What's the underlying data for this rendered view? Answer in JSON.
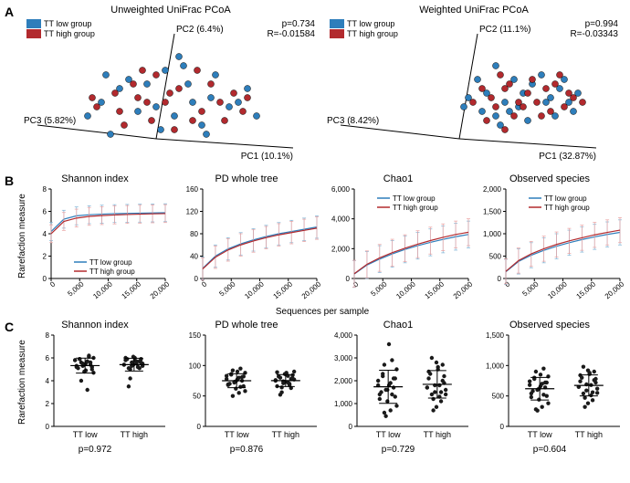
{
  "colors": {
    "blue": "#2e7ebb",
    "red": "#b22a2e",
    "darkred": "#a62a2e",
    "axis": "#000000",
    "black": "#1a1a1a",
    "errbar_blue": "#7fb3d5",
    "errbar_red": "#e8a0a0"
  },
  "panelA": {
    "label": "A",
    "left": {
      "title": "Unweighted UniFrac PCoA",
      "p": "p=0.734",
      "R": "R=-0.01584",
      "pc1": "PC1 (10.1%)",
      "pc2": "PC2 (6.4%)",
      "pc3": "PC3 (5.82%)",
      "legend": [
        {
          "label": "TT low group",
          "color": "#2e7ebb"
        },
        {
          "label": "TT high group",
          "color": "#b22a2e"
        }
      ],
      "points_blue": [
        [
          120,
          70
        ],
        [
          180,
          55
        ],
        [
          210,
          90
        ],
        [
          150,
          100
        ],
        [
          90,
          95
        ],
        [
          200,
          120
        ],
        [
          250,
          80
        ],
        [
          160,
          60
        ],
        [
          100,
          130
        ],
        [
          230,
          100
        ],
        [
          140,
          75
        ],
        [
          75,
          110
        ],
        [
          215,
          65
        ],
        [
          170,
          110
        ],
        [
          190,
          95
        ],
        [
          110,
          80
        ],
        [
          240,
          95
        ],
        [
          155,
          125
        ],
        [
          185,
          75
        ],
        [
          130,
          105
        ],
        [
          95,
          65
        ],
        [
          260,
          110
        ],
        [
          175,
          45
        ],
        [
          205,
          130
        ]
      ],
      "points_red": [
        [
          130,
          90
        ],
        [
          175,
          80
        ],
        [
          200,
          105
        ],
        [
          145,
          115
        ],
        [
          105,
          85
        ],
        [
          220,
          95
        ],
        [
          160,
          95
        ],
        [
          115,
          120
        ],
        [
          235,
          85
        ],
        [
          150,
          65
        ],
        [
          190,
          115
        ],
        [
          125,
          75
        ],
        [
          245,
          105
        ],
        [
          170,
          125
        ],
        [
          85,
          100
        ],
        [
          210,
          75
        ],
        [
          140,
          95
        ],
        [
          195,
          60
        ],
        [
          110,
          105
        ],
        [
          225,
          115
        ],
        [
          165,
          85
        ],
        [
          80,
          90
        ],
        [
          250,
          90
        ],
        [
          135,
          60
        ]
      ]
    },
    "right": {
      "title": "Weighted UniFrac PCoA",
      "p": "p=0.994",
      "R": "R=-0.03343",
      "pc1": "PC1 (32.87%)",
      "pc2": "PC2 (11.1%)",
      "pc3": "PC3 (8.42%)",
      "legend": [
        {
          "label": "TT low group",
          "color": "#2e7ebb"
        },
        {
          "label": "TT high group",
          "color": "#b22a2e"
        }
      ],
      "points_blue": [
        [
          190,
          55
        ],
        [
          230,
          75
        ],
        [
          250,
          90
        ],
        [
          200,
          95
        ],
        [
          175,
          105
        ],
        [
          260,
          80
        ],
        [
          215,
          100
        ],
        [
          240,
          65
        ],
        [
          195,
          120
        ],
        [
          270,
          95
        ],
        [
          180,
          85
        ],
        [
          255,
          110
        ],
        [
          210,
          70
        ],
        [
          225,
          115
        ],
        [
          160,
          90
        ],
        [
          280,
          85
        ],
        [
          205,
          105
        ],
        [
          245,
          95
        ],
        [
          170,
          70
        ],
        [
          265,
          70
        ],
        [
          190,
          110
        ],
        [
          155,
          100
        ],
        [
          275,
          105
        ],
        [
          220,
          85
        ]
      ],
      "points_red": [
        [
          200,
          80
        ],
        [
          235,
          95
        ],
        [
          255,
          75
        ],
        [
          210,
          110
        ],
        [
          185,
          90
        ],
        [
          265,
          100
        ],
        [
          225,
          85
        ],
        [
          195,
          65
        ],
        [
          270,
          85
        ],
        [
          215,
          95
        ],
        [
          180,
          115
        ],
        [
          250,
          105
        ],
        [
          205,
          75
        ],
        [
          240,
          110
        ],
        [
          165,
          95
        ],
        [
          275,
          90
        ],
        [
          220,
          100
        ],
        [
          190,
          100
        ],
        [
          260,
          65
        ],
        [
          175,
          80
        ],
        [
          285,
          95
        ],
        [
          230,
          70
        ],
        [
          200,
          125
        ],
        [
          245,
          80
        ]
      ]
    }
  },
  "panelB": {
    "label": "B",
    "ylabel": "Rarefaction measure",
    "xlabel": "Sequences per sample",
    "charts": [
      {
        "title": "Shannon index",
        "xlim": [
          0,
          20000
        ],
        "xticks": [
          0,
          5000,
          10000,
          15000,
          20000
        ],
        "ylim": [
          0,
          8
        ],
        "yticks": [
          0,
          2,
          4,
          6,
          8
        ],
        "blue_y": [
          4.2,
          5.3,
          5.6,
          5.7,
          5.75,
          5.8,
          5.82,
          5.84,
          5.86,
          5.88
        ],
        "red_y": [
          4.0,
          5.1,
          5.4,
          5.55,
          5.62,
          5.68,
          5.72,
          5.75,
          5.78,
          5.8
        ],
        "err": 0.8,
        "legend": true
      },
      {
        "title": "PD whole tree",
        "xlim": [
          0,
          20000
        ],
        "xticks": [
          0,
          5000,
          10000,
          15000,
          20000
        ],
        "ylim": [
          0,
          160
        ],
        "yticks": [
          0,
          40,
          80,
          120,
          160
        ],
        "blue_y": [
          18,
          40,
          53,
          62,
          69,
          75,
          80,
          84,
          88,
          92
        ],
        "red_y": [
          17,
          38,
          51,
          60,
          67,
          73,
          78,
          82,
          86,
          90
        ],
        "err": 20,
        "legend": false
      },
      {
        "title": "Chao1",
        "xlim": [
          0,
          20000
        ],
        "xticks": [
          0,
          5000,
          10000,
          15000,
          20000
        ],
        "ylim": [
          0,
          6000
        ],
        "yticks": [
          0,
          2000,
          4000,
          6000
        ],
        "blue_y": [
          300,
          900,
          1300,
          1650,
          1950,
          2200,
          2420,
          2620,
          2800,
          2950
        ],
        "red_y": [
          320,
          950,
          1380,
          1730,
          2030,
          2300,
          2540,
          2760,
          2950,
          3100
        ],
        "err": 900,
        "legend": true
      },
      {
        "title": "Observed species",
        "xlim": [
          0,
          20000
        ],
        "xticks": [
          0,
          5000,
          10000,
          15000,
          20000
        ],
        "ylim": [
          0,
          2000
        ],
        "yticks": [
          0,
          500,
          1000,
          1500,
          2000
        ],
        "blue_y": [
          150,
          380,
          520,
          630,
          720,
          800,
          870,
          930,
          985,
          1030
        ],
        "red_y": [
          160,
          400,
          550,
          665,
          760,
          840,
          910,
          975,
          1030,
          1080
        ],
        "err": 280,
        "legend": true
      }
    ],
    "legend_labels": [
      "TT low group",
      "TT high group"
    ]
  },
  "panelC": {
    "label": "C",
    "ylabel": "Rarefaction measure",
    "groups": [
      "TT low",
      "TT high"
    ],
    "charts": [
      {
        "title": "Shannon index",
        "ylim": [
          0,
          8
        ],
        "yticks": [
          0,
          2,
          4,
          6,
          8
        ],
        "p": "p=0.972",
        "low": [
          5.8,
          5.2,
          6.1,
          4.9,
          5.5,
          5.9,
          5.3,
          6.0,
          5.4,
          5.7,
          4.8,
          5.6,
          5.1,
          5.8,
          5.0,
          6.2,
          5.5,
          5.3,
          5.9,
          5.2,
          4.7,
          5.6,
          3.2,
          5.4,
          4.0
        ],
        "high": [
          5.4,
          5.9,
          5.2,
          6.0,
          5.6,
          5.1,
          5.8,
          5.3,
          5.7,
          5.5,
          6.1,
          5.0,
          5.9,
          5.4,
          5.6,
          5.2,
          5.8,
          5.3,
          3.5,
          6.0,
          5.5,
          5.1,
          5.7,
          5.4,
          4.2
        ]
      },
      {
        "title": "PD whole tree",
        "ylim": [
          0,
          150
        ],
        "yticks": [
          0,
          50,
          100,
          150
        ],
        "p": "p=0.876",
        "low": [
          78,
          82,
          65,
          90,
          72,
          85,
          68,
          88,
          75,
          80,
          62,
          92,
          70,
          83,
          66,
          95,
          77,
          73,
          86,
          69,
          58,
          81,
          55,
          74,
          50
        ],
        "high": [
          76,
          84,
          70,
          88,
          74,
          80,
          66,
          90,
          78,
          72,
          86,
          64,
          82,
          75,
          79,
          68,
          85,
          71,
          52,
          89,
          77,
          63,
          83,
          73,
          56
        ]
      },
      {
        "title": "Chao1",
        "ylim": [
          0,
          4000
        ],
        "yticks": [
          0,
          1000,
          2000,
          3000,
          4000
        ],
        "p": "p=0.729",
        "low": [
          1800,
          2100,
          1400,
          3600,
          1600,
          2300,
          1200,
          2500,
          1700,
          1900,
          1100,
          2700,
          1500,
          2000,
          1300,
          2900,
          1800,
          450,
          2200,
          1400,
          900,
          2100,
          700,
          1600,
          600
        ],
        "high": [
          1700,
          2200,
          1500,
          2600,
          1800,
          1400,
          2400,
          1600,
          2000,
          1300,
          2800,
          1200,
          2300,
          1700,
          1900,
          1100,
          2500,
          1500,
          3000,
          2100,
          1400,
          2700,
          1800,
          850,
          700
        ]
      },
      {
        "title": "Observed species",
        "ylim": [
          0,
          1500
        ],
        "yticks": [
          0,
          500,
          1000,
          1500
        ],
        "p": "p=0.604",
        "low": [
          680,
          720,
          520,
          850,
          600,
          780,
          480,
          820,
          640,
          700,
          440,
          900,
          580,
          740,
          500,
          950,
          660,
          260,
          800,
          540,
          380,
          720,
          320,
          620,
          280
        ],
        "high": [
          650,
          780,
          560,
          880,
          690,
          540,
          840,
          620,
          760,
          510,
          920,
          470,
          800,
          650,
          720,
          430,
          860,
          590,
          980,
          740,
          550,
          900,
          680,
          380,
          320
        ]
      }
    ]
  }
}
